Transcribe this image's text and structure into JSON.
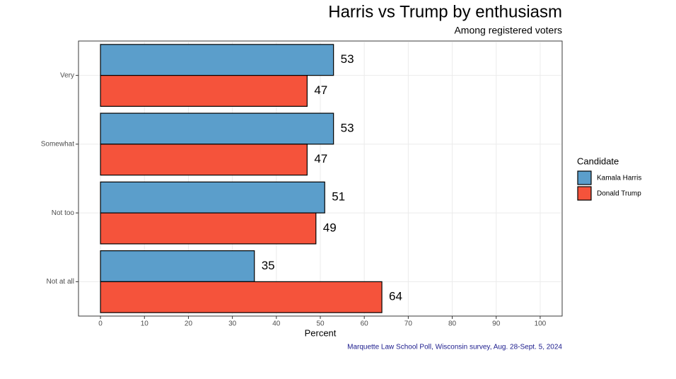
{
  "chart_data": {
    "type": "bar",
    "orientation": "horizontal",
    "title": "Harris vs Trump by enthusiasm",
    "subtitle": "Among registered voters",
    "x_label": "Percent",
    "caption": "Marquette Law School Poll, Wisconsin survey, Aug. 28-Sept. 5, 2024",
    "legend_title": "Candidate",
    "legend_position": "right",
    "grid": true,
    "categories": [
      "Very",
      "Somewhat",
      "Not too",
      "Not at all"
    ],
    "series": [
      {
        "name": "Kamala Harris",
        "color": "#5b9ecb",
        "values": [
          53,
          53,
          51,
          35
        ]
      },
      {
        "name": "Donald Trump",
        "color": "#f5533b",
        "values": [
          47,
          47,
          49,
          64
        ]
      }
    ],
    "xlim": [
      -5,
      105
    ],
    "xticks": [
      0,
      10,
      20,
      30,
      40,
      50,
      60,
      70,
      80,
      90,
      100
    ]
  }
}
